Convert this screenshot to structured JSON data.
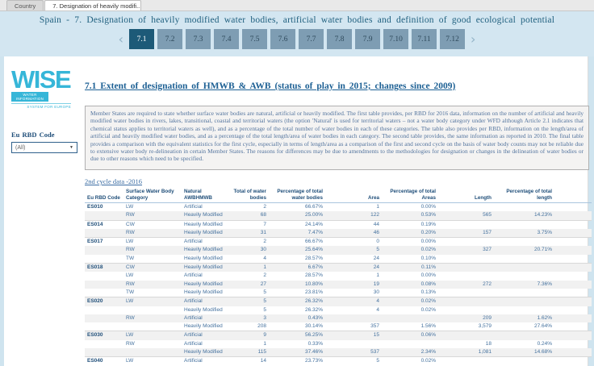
{
  "window_tabs": [
    {
      "label": "Country",
      "active": false
    },
    {
      "label": "7. Designation of heavily modifi...",
      "active": true
    }
  ],
  "header": {
    "title": "Spain - 7. Designation of heavily modified water bodies, artificial water bodies and definition of good ecological potential",
    "nav": {
      "prev_icon": "‹",
      "next_icon": "›",
      "items": [
        "7.1",
        "7.2",
        "7.3",
        "7.4",
        "7.5",
        "7.6",
        "7.7",
        "7.8",
        "7.9",
        "7.10",
        "7.11",
        "7.12"
      ],
      "active": "7.1"
    }
  },
  "sidebar": {
    "logo": {
      "word": "WISE",
      "line1": "WATER INFORMATION",
      "line2": "SYSTEM FOR EUROPE"
    },
    "filter": {
      "label": "Eu RBD Code",
      "value": "(All)",
      "caret_icon": "▼"
    }
  },
  "main": {
    "heading": "7.1 Extent of designation of HMWB & AWB (status of play in 2015; changes since 2009)",
    "description": "Member States are required to state whether surface water bodies are natural, artificial or heavily modified. The first table provides, per RBD for 2016 data, information on the number of artificial and heavily modified water bodies in rivers, lakes, transitional, coastal and territorial waters (the option 'Natural' is used for territorial waters – not a water body category under WFD although Article 2.1 indicates that chemical status applies to territorial waters as well), and as a percentage of the total number of water bodies in each of these categories. The table also provides per RBD, information on the length/area of artificial and heavily modified water bodies, and as a percentage of the total length/area of water bodies in each category. The second table provides, the same information as reported in 2010. The final table provides a comparison with the equivalent statistics for the first cycle, especially in terms of length/area as a comparison of the first and second cycle on the basis of water body counts may not be reliable due to extensive water body re-delineation in certain Member States. The reasons for differences may be due to amendments to the methodologies for designation or changes in the delineation of water bodies or due to other reasons which need to be specified.",
    "table_caption": "2nd cycle data -2016",
    "table": {
      "columns": [
        "Eu RBD Code",
        "Surface Water Body Category",
        "Natural AWBHMWB",
        "Total of water bodies",
        "Percentage of total water bodies",
        "Area",
        "Percentage of total Areas",
        "Length",
        "Percentage of total length"
      ],
      "rows": [
        [
          "ES010",
          "LW",
          "Artificial",
          "2",
          "66.67%",
          "1",
          "0.00%",
          "",
          ""
        ],
        [
          "",
          "RW",
          "Heavily Modified",
          "68",
          "25.00%",
          "122",
          "0.53%",
          "565",
          "14.23%"
        ],
        [
          "ES014",
          "CW",
          "Heavily Modified",
          "7",
          "24.14%",
          "44",
          "0.19%",
          "",
          ""
        ],
        [
          "",
          "RW",
          "Heavily Modified",
          "31",
          "7.47%",
          "46",
          "0.20%",
          "157",
          "3.75%"
        ],
        [
          "ES017",
          "LW",
          "Artificial",
          "2",
          "66.67%",
          "0",
          "0.00%",
          "",
          ""
        ],
        [
          "",
          "RW",
          "Heavily Modified",
          "30",
          "25.64%",
          "5",
          "0.02%",
          "327",
          "20.71%"
        ],
        [
          "",
          "TW",
          "Heavily Modified",
          "4",
          "28.57%",
          "24",
          "0.10%",
          "",
          ""
        ],
        [
          "ES018",
          "CW",
          "Heavily Modified",
          "1",
          "6.67%",
          "24",
          "0.11%",
          "",
          ""
        ],
        [
          "",
          "LW",
          "Artificial",
          "2",
          "28.57%",
          "1",
          "0.00%",
          "",
          ""
        ],
        [
          "",
          "RW",
          "Heavily Modified",
          "27",
          "10.80%",
          "19",
          "0.08%",
          "272",
          "7.36%"
        ],
        [
          "",
          "TW",
          "Heavily Modified",
          "5",
          "23.81%",
          "30",
          "0.13%",
          "",
          ""
        ],
        [
          "ES020",
          "LW",
          "Artificial",
          "5",
          "26.32%",
          "4",
          "0.02%",
          "",
          ""
        ],
        [
          "",
          "",
          "Heavily Modified",
          "5",
          "26.32%",
          "4",
          "0.02%",
          "",
          ""
        ],
        [
          "",
          "RW",
          "Artificial",
          "3",
          "0.43%",
          "",
          "",
          "209",
          "1.62%"
        ],
        [
          "",
          "",
          "Heavily Modified",
          "208",
          "30.14%",
          "357",
          "1.56%",
          "3,579",
          "27.64%"
        ],
        [
          "ES030",
          "LW",
          "Artificial",
          "9",
          "56.25%",
          "15",
          "0.06%",
          "",
          ""
        ],
        [
          "",
          "RW",
          "Artificial",
          "1",
          "0.33%",
          "",
          "",
          "18",
          "0.24%"
        ],
        [
          "",
          "",
          "Heavily Modified",
          "115",
          "37.46%",
          "537",
          "2.34%",
          "1,081",
          "14.68%"
        ],
        [
          "ES040",
          "LW",
          "Artificial",
          "14",
          "23.73%",
          "5",
          "0.02%",
          "",
          ""
        ]
      ]
    }
  },
  "colors": {
    "header_band": "#d3e6f1",
    "nav_active": "#1d5a78",
    "nav_inactive": "#7e9db3",
    "brand_cyan": "#36b6d8",
    "table_header_text": "#1f4e79",
    "table_value_text": "#44719e",
    "row_stripe": "#f1f1f1"
  }
}
